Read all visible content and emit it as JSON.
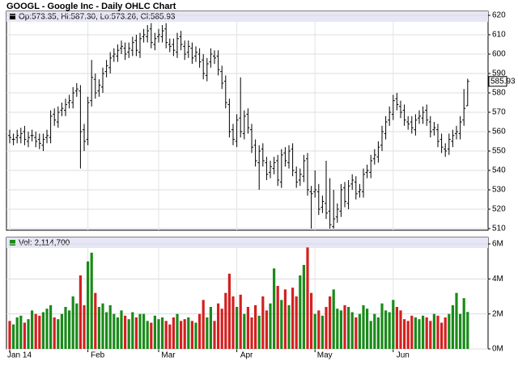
{
  "chart_data": [
    {
      "type": "ohlc",
      "title": "GOOGL - Google Inc - Daily OHLC Chart",
      "legend": "Op:573.35, Hi:587.30, Lo:573.26, Cl:585.93",
      "categories": [
        "Jan 14",
        null,
        null,
        null,
        null,
        null,
        null,
        null,
        null,
        null,
        null,
        null,
        null,
        null,
        null,
        null,
        null,
        null,
        null,
        null,
        null,
        "Feb",
        null,
        null,
        null,
        null,
        null,
        null,
        null,
        null,
        null,
        null,
        null,
        null,
        null,
        null,
        null,
        null,
        null,
        null,
        "Mar",
        null,
        null,
        null,
        null,
        null,
        null,
        null,
        null,
        null,
        null,
        null,
        null,
        null,
        null,
        null,
        null,
        null,
        null,
        null,
        null,
        "Apr",
        null,
        null,
        null,
        null,
        null,
        null,
        null,
        null,
        null,
        null,
        null,
        null,
        null,
        null,
        null,
        null,
        null,
        null,
        null,
        null,
        "May",
        null,
        null,
        null,
        null,
        null,
        null,
        null,
        null,
        null,
        null,
        null,
        null,
        null,
        null,
        null,
        null,
        null,
        null,
        null,
        null,
        "Jun",
        null,
        null,
        null,
        null,
        null,
        null,
        null,
        null,
        null,
        null,
        null,
        null,
        null,
        null,
        null,
        null,
        null,
        null,
        null,
        null
      ],
      "open": [
        558,
        556,
        557,
        557,
        560,
        555,
        558,
        557,
        556,
        553,
        557,
        557,
        569,
        565,
        571,
        571,
        575,
        575,
        581,
        581,
        561,
        556,
        576,
        587,
        581,
        583,
        591,
        593,
        599,
        599,
        603,
        603,
        601,
        602,
        607,
        601,
        609,
        609,
        613,
        605,
        609,
        609,
        613,
        605,
        605,
        601,
        609,
        604,
        601,
        603,
        599,
        600,
        597,
        589,
        596,
        599,
        599,
        591,
        586,
        574,
        561,
        555,
        567,
        559,
        569,
        561,
        553,
        544,
        551,
        544,
        539,
        541,
        545,
        534,
        549,
        544,
        551,
        539,
        535,
        537,
        546,
        529,
        529,
        529,
        521,
        523,
        519,
        511,
        516,
        519,
        531,
        523,
        533,
        534,
        529,
        529,
        539,
        539,
        546,
        547,
        553,
        559,
        566,
        569,
        577,
        573,
        571,
        565,
        565,
        561,
        567,
        567,
        571,
        565,
        561,
        561,
        556,
        551,
        551,
        555,
        559,
        559,
        566,
        573.35
      ],
      "high": [
        561,
        559,
        561,
        562,
        563,
        560,
        561,
        560,
        559,
        559,
        561,
        571,
        572,
        573,
        575,
        577,
        579,
        583,
        585,
        584,
        564,
        578,
        597,
        590,
        587,
        593,
        597,
        601,
        603,
        605,
        607,
        606,
        606,
        609,
        610,
        611,
        613,
        615,
        616,
        611,
        613,
        615,
        616,
        608,
        608,
        611,
        612,
        607,
        607,
        606,
        604,
        603,
        600,
        598,
        603,
        602,
        602,
        594,
        589,
        577,
        564,
        569,
        588,
        571,
        572,
        564,
        556,
        553,
        554,
        547,
        545,
        547,
        548,
        551,
        552,
        553,
        554,
        542,
        541,
        548,
        549,
        532,
        540,
        533,
        527,
        545,
        536,
        530,
        523,
        533,
        534,
        535,
        538,
        537,
        533,
        541,
        543,
        548,
        551,
        555,
        563,
        568,
        573,
        579,
        580,
        576,
        574,
        568,
        568,
        569,
        571,
        573,
        574,
        568,
        565,
        564,
        559,
        554,
        559,
        561,
        563,
        568,
        582,
        587.3
      ],
      "low": [
        554,
        553,
        554,
        554,
        553,
        552,
        555,
        552,
        551,
        550,
        554,
        554,
        563,
        562,
        568,
        568,
        572,
        572,
        578,
        541,
        550,
        553,
        573,
        577,
        578,
        580,
        588,
        590,
        596,
        596,
        600,
        597,
        598,
        599,
        599,
        598,
        606,
        606,
        603,
        602,
        606,
        606,
        603,
        601,
        599,
        598,
        602,
        597,
        598,
        595,
        596,
        593,
        587,
        586,
        593,
        595,
        589,
        582,
        572,
        557,
        553,
        552,
        557,
        556,
        559,
        549,
        542,
        530,
        542,
        535,
        536,
        538,
        532,
        531,
        542,
        541,
        537,
        531,
        532,
        534,
        527,
        510,
        526,
        517,
        518,
        515,
        510,
        510,
        513,
        516,
        521,
        520,
        530,
        525,
        526,
        526,
        536,
        536,
        543,
        544,
        550,
        556,
        563,
        566,
        571,
        567,
        563,
        561,
        559,
        558,
        564,
        564,
        563,
        557,
        558,
        552,
        549,
        547,
        548,
        552,
        556,
        556,
        563,
        573.26
      ],
      "close": [
        557,
        556,
        558,
        559,
        556,
        557,
        558,
        555,
        554,
        556,
        558,
        568,
        566,
        570,
        572,
        574,
        576,
        580,
        582,
        560,
        555,
        575,
        588,
        580,
        584,
        590,
        594,
        598,
        600,
        602,
        604,
        600,
        603,
        606,
        602,
        608,
        610,
        612,
        606,
        608,
        610,
        612,
        606,
        604,
        602,
        608,
        605,
        600,
        604,
        598,
        601,
        596,
        590,
        595,
        600,
        598,
        592,
        585,
        575,
        560,
        556,
        566,
        560,
        568,
        562,
        552,
        545,
        550,
        545,
        538,
        542,
        544,
        535,
        548,
        545,
        550,
        540,
        534,
        538,
        545,
        530,
        528,
        530,
        520,
        524,
        518,
        512,
        515,
        520,
        530,
        524,
        532,
        535,
        528,
        530,
        538,
        540,
        545,
        548,
        552,
        560,
        565,
        570,
        576,
        574,
        570,
        566,
        564,
        562,
        566,
        568,
        570,
        566,
        560,
        562,
        555,
        552,
        550,
        556,
        558,
        560,
        565,
        572,
        585.93
      ],
      "color": "#000000",
      "ylim": [
        510,
        620
      ],
      "yticks": [
        510,
        520,
        530,
        540,
        550,
        560,
        570,
        580,
        590,
        600,
        610,
        620
      ],
      "grid": true
    },
    {
      "type": "bar",
      "legend": "Vol: 2,114,700",
      "values": [
        1.6,
        1.4,
        1.8,
        1.9,
        1.5,
        1.7,
        2.2,
        2.0,
        1.9,
        2.1,
        2.3,
        2.5,
        1.8,
        1.7,
        2.0,
        2.4,
        2.2,
        3.0,
        2.6,
        4.2,
        2.5,
        5.0,
        5.5,
        3.2,
        2.4,
        2.6,
        2.1,
        2.5,
        2.0,
        1.8,
        2.2,
        1.9,
        1.7,
        2.1,
        1.8,
        2.0,
        2.0,
        1.6,
        1.5,
        1.9,
        1.7,
        1.8,
        1.6,
        1.4,
        1.8,
        2.0,
        1.6,
        1.7,
        1.8,
        1.6,
        1.5,
        2.0,
        2.8,
        1.8,
        2.4,
        1.6,
        2.6,
        2.3,
        3.2,
        4.3,
        3.0,
        2.4,
        3.1,
        2.0,
        2.4,
        1.8,
        2.5,
        1.9,
        3.0,
        2.2,
        2.6,
        4.6,
        3.6,
        2.8,
        3.4,
        2.5,
        3.5,
        3.0,
        4.2,
        4.8,
        5.8,
        3.2,
        2.0,
        2.2,
        1.9,
        2.4,
        3.0,
        3.4,
        2.3,
        2.2,
        2.5,
        2.4,
        2.1,
        1.8,
        2.0,
        2.5,
        2.3,
        1.6,
        2.0,
        1.8,
        2.6,
        2.2,
        2.1,
        2.8,
        2.4,
        2.2,
        1.7,
        1.6,
        1.9,
        1.8,
        1.7,
        1.9,
        1.8,
        1.6,
        2.0,
        1.9,
        1.5,
        1.8,
        2.0,
        2.5,
        3.2,
        2.0,
        2.9,
        2.1147
      ],
      "up_color": "#1a8a1a",
      "down_color": "#d42020",
      "ylim": [
        0,
        6.3
      ],
      "yticks": [
        {
          "value": 0,
          "label": "0M"
        },
        {
          "value": 2,
          "label": "2M"
        },
        {
          "value": 4,
          "label": "4M"
        },
        {
          "value": 6,
          "label": "6M"
        }
      ],
      "grid": true
    }
  ]
}
